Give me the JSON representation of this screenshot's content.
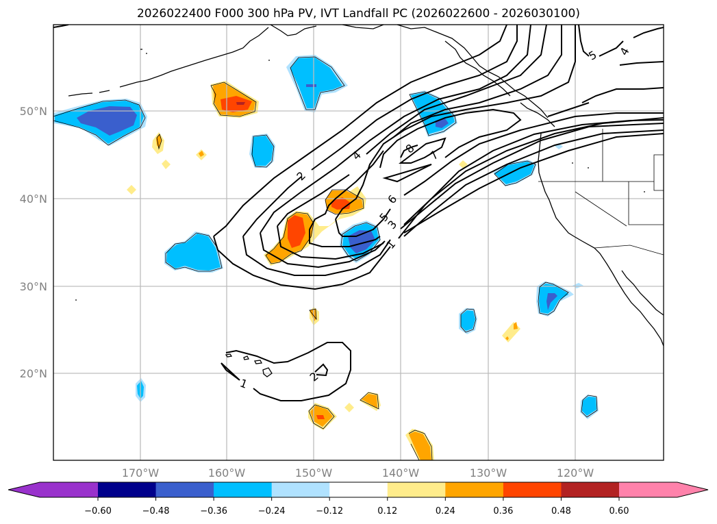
{
  "title": "2026022400 F000 300 hPa PV, IVT Landfall PC (2026022600 - 2026030100)",
  "axes": {
    "lon_ticks": [
      "170°W",
      "160°W",
      "150°W",
      "140°W",
      "130°W",
      "120°W"
    ],
    "lon_values": [
      -170,
      -160,
      -150,
      -140,
      -130,
      -120
    ],
    "lat_ticks": [
      "50°N",
      "40°N",
      "30°N",
      "20°N"
    ],
    "lat_values": [
      50,
      40,
      30,
      20
    ],
    "lon_range": [
      -180,
      -110
    ],
    "lat_range": [
      10,
      60
    ]
  },
  "colorbar": {
    "tick_labels": [
      "−0.60",
      "−0.48",
      "−0.36",
      "−0.24",
      "−0.12",
      "0.12",
      "0.24",
      "0.36",
      "0.48",
      "0.60"
    ],
    "levels": [
      -0.6,
      -0.48,
      -0.36,
      -0.24,
      -0.12,
      0.12,
      0.24,
      0.36,
      0.48,
      0.6
    ],
    "colors": [
      "#9932cc",
      "#00008b",
      "#3a5fcd",
      "#00bfff",
      "#b0e2ff",
      "#ffffff",
      "#ffec8b",
      "#ffa500",
      "#ff4500",
      "#b22222",
      "#ff82ab"
    ],
    "extend": "both"
  },
  "contours": {
    "labels": [
      "1",
      "2",
      "3",
      "4",
      "5",
      "6",
      "7",
      "8",
      "1",
      "2",
      "5",
      "4"
    ]
  },
  "chart_data": {
    "type": "map",
    "title": "2026022400 F000 300 hPa PV, IVT Landfall PC (2026022600 - 2026030100)",
    "filled_field": "300 hPa PV anomaly principal component",
    "contour_field": "IVT",
    "contour_levels": [
      1,
      2,
      3,
      4,
      5,
      6,
      7,
      8
    ],
    "xlabel": "",
    "ylabel": "",
    "xlim": [
      -180,
      -110
    ],
    "ylim": [
      10,
      60
    ],
    "grid": true
  }
}
